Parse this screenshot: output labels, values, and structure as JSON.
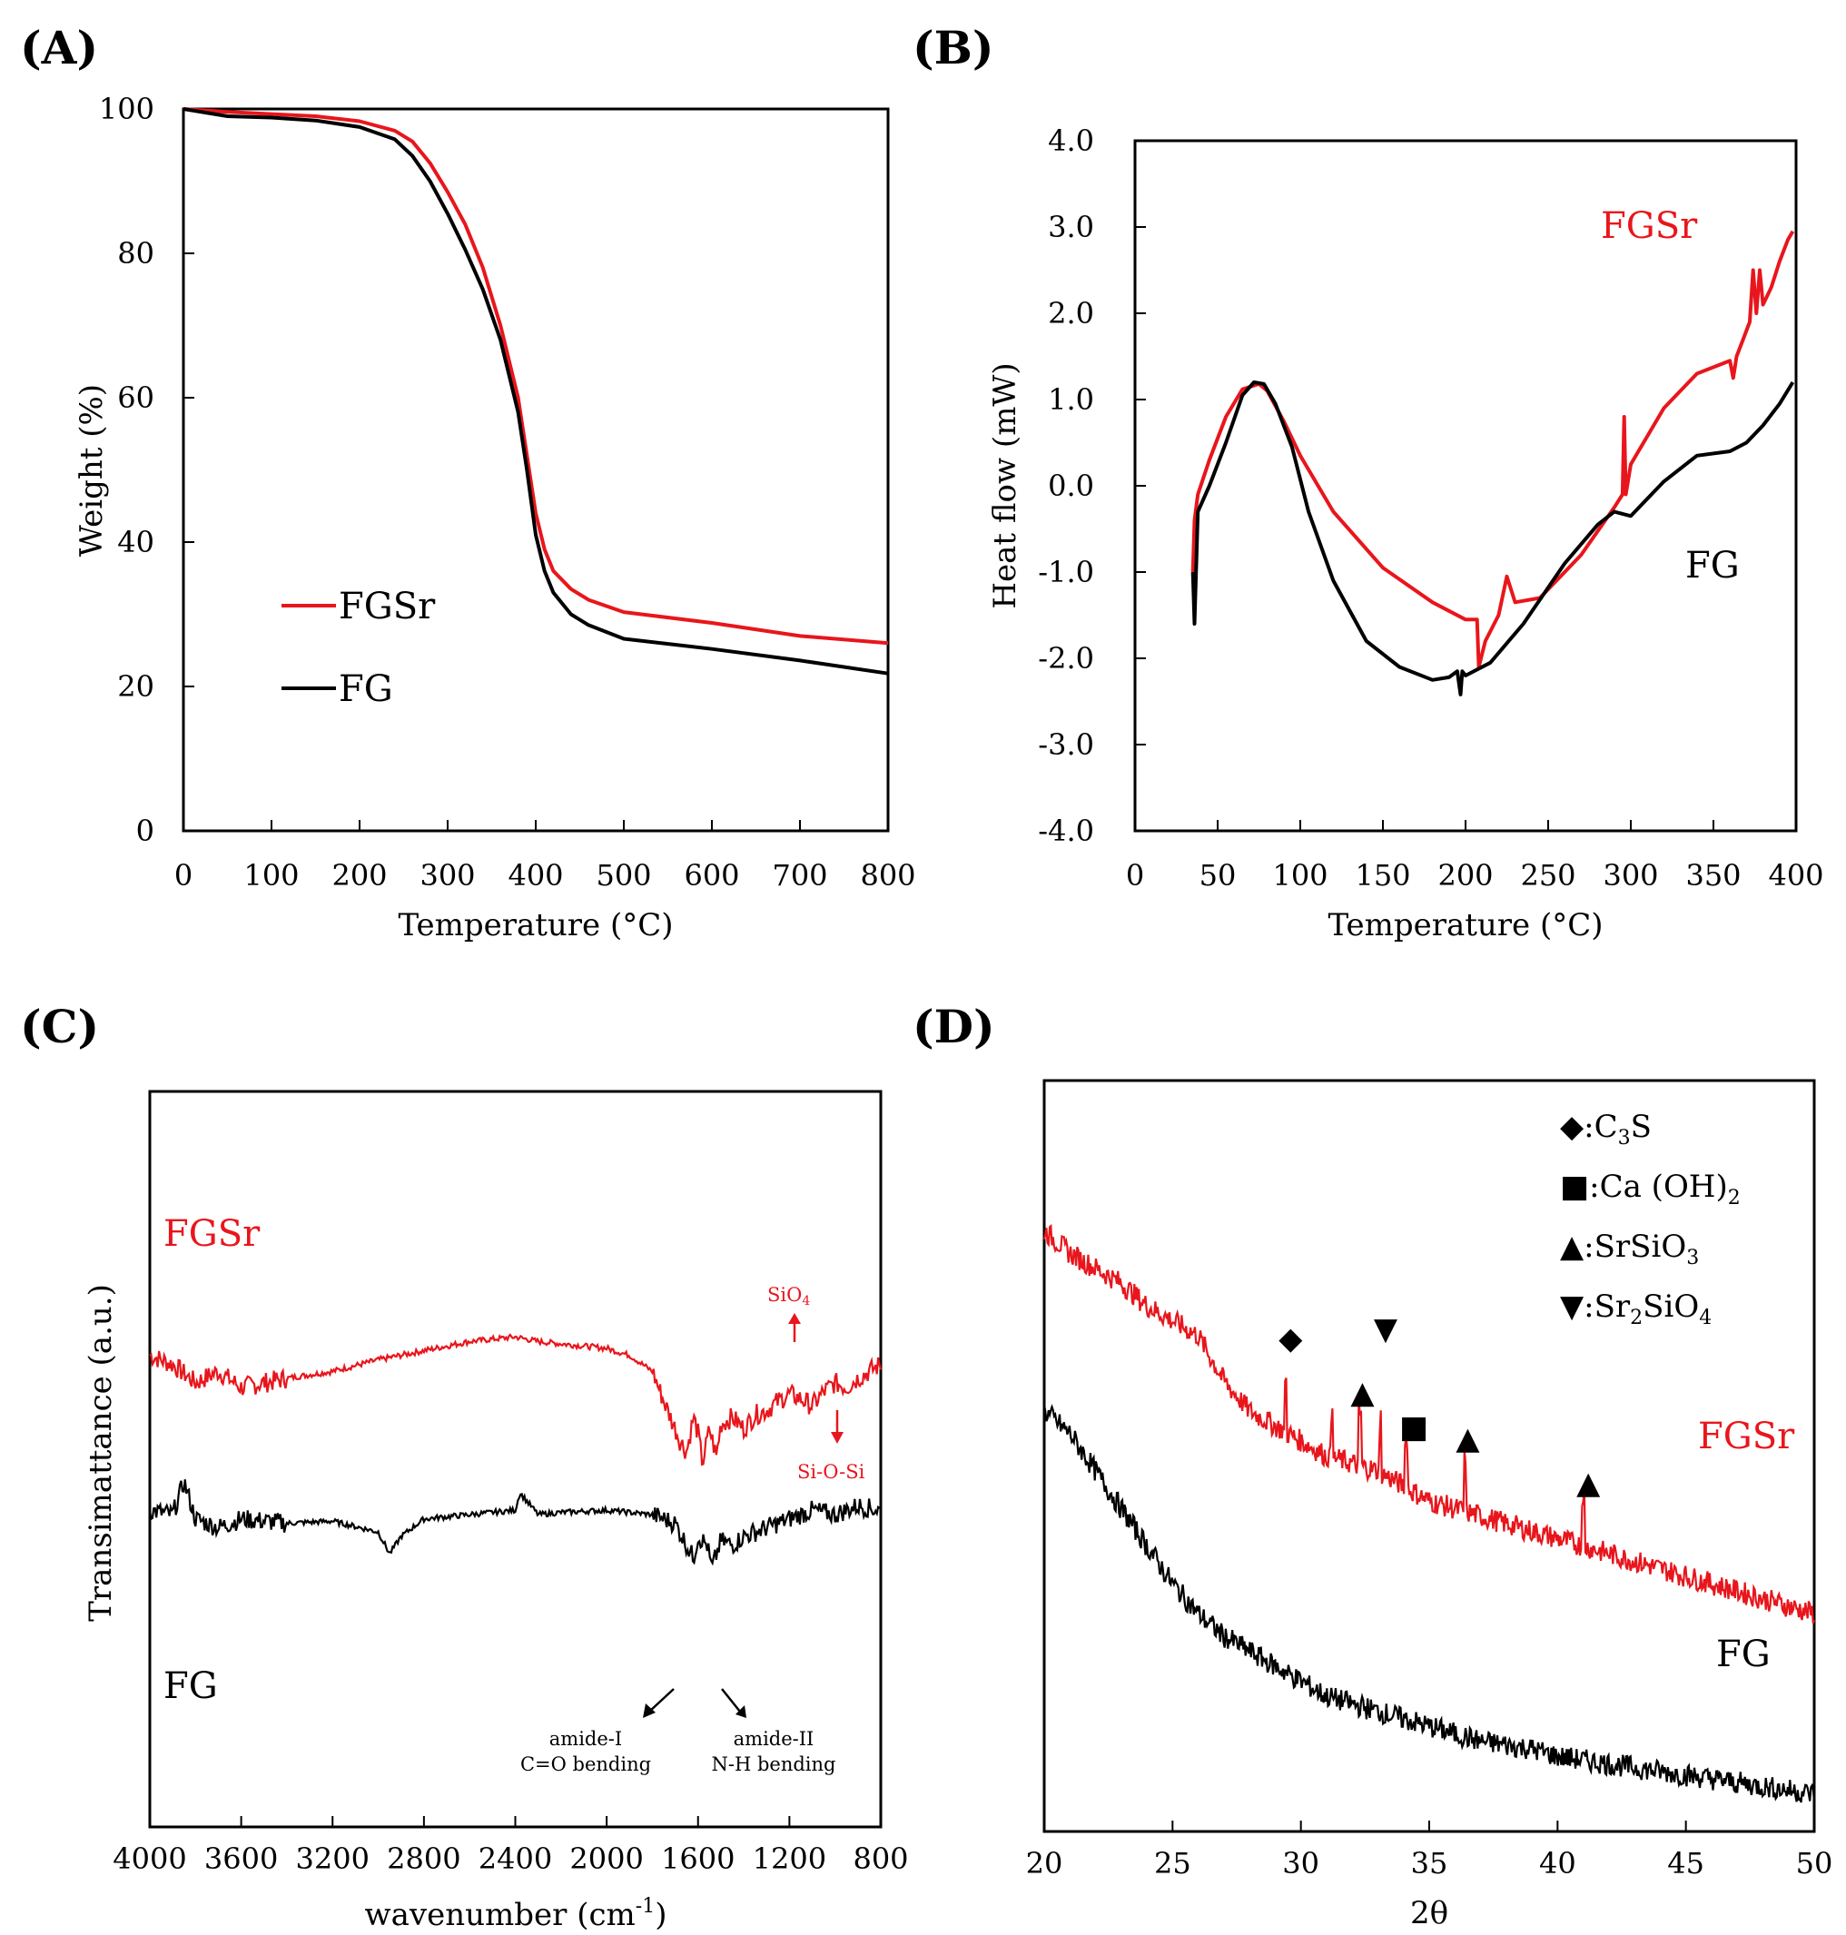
{
  "colors": {
    "fgsr": "#e8161c",
    "fg": "#000000"
  },
  "chart_data": [
    {
      "panel": "(A)",
      "type": "line",
      "title": "",
      "xlabel": "Temperature (°C)",
      "ylabel": "Weight (%)",
      "xlim": [
        0,
        800
      ],
      "ylim": [
        0,
        100
      ],
      "xticks": [
        "0",
        "100",
        "200",
        "300",
        "400",
        "500",
        "600",
        "700",
        "800"
      ],
      "yticks": [
        "0",
        "20",
        "40",
        "60",
        "80",
        "100"
      ],
      "legend": [
        "FGSr",
        "FG"
      ],
      "series": [
        {
          "name": "FGSr",
          "x": [
            0,
            50,
            100,
            150,
            200,
            240,
            260,
            280,
            300,
            320,
            340,
            360,
            380,
            390,
            400,
            410,
            420,
            440,
            460,
            500,
            600,
            700,
            800
          ],
          "y": [
            100,
            99.6,
            99.3,
            99.0,
            98.3,
            97.0,
            95.5,
            92.5,
            88.5,
            84.0,
            78.0,
            70.0,
            60.0,
            52.0,
            44.0,
            39.0,
            36.0,
            33.5,
            32.0,
            30.3,
            28.8,
            27.0,
            26.0
          ]
        },
        {
          "name": "FG",
          "x": [
            0,
            50,
            100,
            150,
            200,
            240,
            260,
            280,
            300,
            320,
            340,
            360,
            380,
            390,
            400,
            410,
            420,
            440,
            460,
            500,
            600,
            700,
            800
          ],
          "y": [
            100,
            99.0,
            98.8,
            98.4,
            97.5,
            95.8,
            93.5,
            90.0,
            85.5,
            80.5,
            75.0,
            68.0,
            58.0,
            50.0,
            41.0,
            36.0,
            33.0,
            30.0,
            28.5,
            26.6,
            25.2,
            23.6,
            21.8
          ]
        }
      ]
    },
    {
      "panel": "(B)",
      "type": "line",
      "title": "",
      "xlabel": "Temperature (°C)",
      "ylabel": "Heat flow (mW)",
      "xlim": [
        0,
        400
      ],
      "ylim": [
        -4.0,
        4.0
      ],
      "xticks": [
        "0",
        "50",
        "100",
        "150",
        "200",
        "250",
        "300",
        "350",
        "400"
      ],
      "yticks": [
        "4.0",
        "3.0",
        "2.0",
        "1.0",
        "0.0",
        "-1.0",
        "-2.0",
        "-3.0",
        "-4.0"
      ],
      "series": [
        {
          "name": "FGSr",
          "x": [
            35,
            36,
            38,
            45,
            55,
            65,
            75,
            80,
            90,
            100,
            120,
            150,
            180,
            200,
            207,
            208,
            212,
            220,
            225,
            230,
            245,
            270,
            290,
            295,
            296,
            297,
            300,
            320,
            340,
            360,
            362,
            364,
            368,
            372,
            374,
            376,
            378,
            380,
            385,
            390,
            395,
            398
          ],
          "y": [
            -1.0,
            -0.4,
            -0.1,
            0.3,
            0.8,
            1.12,
            1.18,
            1.1,
            0.75,
            0.35,
            -0.3,
            -0.95,
            -1.35,
            -1.55,
            -1.55,
            -2.1,
            -1.8,
            -1.5,
            -1.05,
            -1.35,
            -1.3,
            -0.8,
            -0.25,
            -0.1,
            0.8,
            -0.1,
            0.25,
            0.9,
            1.3,
            1.45,
            1.25,
            1.5,
            1.7,
            1.9,
            2.5,
            2.0,
            2.5,
            2.1,
            2.3,
            2.6,
            2.85,
            2.95
          ]
        },
        {
          "name": "FG",
          "x": [
            35,
            36,
            38,
            45,
            55,
            65,
            72,
            78,
            85,
            95,
            105,
            120,
            140,
            160,
            180,
            190,
            195,
            197,
            198,
            200,
            215,
            235,
            260,
            280,
            290,
            300,
            320,
            340,
            360,
            370,
            380,
            390,
            398
          ],
          "y": [
            -1.0,
            -1.6,
            -0.3,
            0.0,
            0.5,
            1.05,
            1.2,
            1.18,
            0.95,
            0.45,
            -0.3,
            -1.1,
            -1.8,
            -2.1,
            -2.25,
            -2.22,
            -2.15,
            -2.42,
            -2.15,
            -2.2,
            -2.05,
            -1.6,
            -0.9,
            -0.45,
            -0.3,
            -0.35,
            0.05,
            0.35,
            0.4,
            0.5,
            0.7,
            0.95,
            1.2
          ]
        }
      ],
      "series_labels": [
        "FGSr",
        "FG"
      ]
    },
    {
      "panel": "(C)",
      "type": "line",
      "title": "",
      "xlabel": "wavenumber (cm",
      "xlabel_sup": "-1",
      "xlabel_end": ")",
      "ylabel": "Transimattance (a.u.)",
      "xlim": [
        4000,
        800
      ],
      "xticks": [
        "4000",
        "3600",
        "3200",
        "2800",
        "2400",
        "2000",
        "1600",
        "1200",
        "800"
      ],
      "series": [
        {
          "name": "FGSr",
          "x": [
            4000,
            3900,
            3800,
            3700,
            3600,
            3400,
            3200,
            3000,
            2800,
            2600,
            2400,
            2300,
            2200,
            2000,
            1900,
            1800,
            1750,
            1700,
            1680,
            1650,
            1620,
            1600,
            1580,
            1550,
            1520,
            1500,
            1450,
            1400,
            1350,
            1300,
            1250,
            1200,
            1150,
            1100,
            1050,
            1000,
            950,
            900,
            850,
            800
          ],
          "y": [
            0.82,
            0.78,
            0.7,
            0.75,
            0.68,
            0.72,
            0.75,
            0.8,
            0.84,
            0.88,
            0.9,
            0.88,
            0.87,
            0.85,
            0.82,
            0.75,
            0.62,
            0.5,
            0.45,
            0.4,
            0.55,
            0.48,
            0.35,
            0.5,
            0.38,
            0.52,
            0.55,
            0.5,
            0.56,
            0.58,
            0.62,
            0.65,
            0.63,
            0.6,
            0.66,
            0.7,
            0.68,
            0.72,
            0.75,
            0.78
          ]
        },
        {
          "name": "FG",
          "x": [
            4000,
            3900,
            3850,
            3800,
            3700,
            3600,
            3400,
            3200,
            3000,
            2950,
            2900,
            2800,
            2600,
            2400,
            2380,
            2300,
            2200,
            2000,
            1900,
            1800,
            1700,
            1650,
            1620,
            1600,
            1560,
            1540,
            1500,
            1450,
            1400,
            1300,
            1200,
            1100,
            1000,
            900,
            800
          ],
          "y": [
            0.82,
            0.8,
            0.95,
            0.78,
            0.74,
            0.78,
            0.76,
            0.77,
            0.72,
            0.62,
            0.7,
            0.78,
            0.8,
            0.82,
            0.9,
            0.8,
            0.81,
            0.82,
            0.81,
            0.8,
            0.76,
            0.66,
            0.6,
            0.7,
            0.66,
            0.55,
            0.68,
            0.66,
            0.7,
            0.74,
            0.78,
            0.82,
            0.8,
            0.84,
            0.82
          ]
        }
      ],
      "series_labels": [
        "FGSr",
        "FG"
      ],
      "annotations": {
        "sio4": "SiO",
        "sio4_sub": "4",
        "siosi": "Si-O-Si",
        "amide1_line1": "amide-I",
        "amide1_line2": "C=O bending",
        "amide2_line1": "amide-II",
        "amide2_line2": "N-H bending"
      }
    },
    {
      "panel": "(D)",
      "type": "line",
      "title": "",
      "xlabel": "2θ",
      "xlim": [
        20,
        50
      ],
      "xticks": [
        "20",
        "25",
        "30",
        "35",
        "40",
        "45",
        "50"
      ],
      "series": [
        {
          "name": "FGSr",
          "x": [
            20,
            21,
            22,
            23,
            24,
            25,
            26,
            27,
            28,
            29,
            30,
            31,
            32,
            33,
            34,
            35,
            36,
            37,
            38,
            39,
            40,
            41,
            42,
            43,
            44,
            45,
            46,
            47,
            48,
            49,
            50
          ],
          "y": [
            0.8,
            0.77,
            0.75,
            0.73,
            0.7,
            0.68,
            0.66,
            0.6,
            0.56,
            0.54,
            0.52,
            0.5,
            0.49,
            0.48,
            0.46,
            0.44,
            0.43,
            0.42,
            0.41,
            0.4,
            0.39,
            0.38,
            0.37,
            0.36,
            0.35,
            0.34,
            0.33,
            0.32,
            0.31,
            0.3,
            0.29
          ]
        },
        {
          "name": "FG",
          "x": [
            20,
            21,
            22,
            23,
            24,
            25,
            26,
            27,
            28,
            29,
            30,
            31,
            32,
            33,
            34,
            35,
            36,
            37,
            38,
            39,
            40,
            41,
            42,
            43,
            44,
            45,
            46,
            47,
            48,
            49,
            50
          ],
          "y": [
            0.56,
            0.53,
            0.48,
            0.43,
            0.38,
            0.33,
            0.29,
            0.26,
            0.24,
            0.22,
            0.2,
            0.18,
            0.17,
            0.16,
            0.15,
            0.14,
            0.13,
            0.12,
            0.115,
            0.11,
            0.1,
            0.095,
            0.09,
            0.085,
            0.08,
            0.075,
            0.07,
            0.065,
            0.06,
            0.055,
            0.05
          ]
        }
      ],
      "series_labels": [
        "FGSr",
        "FG"
      ],
      "legend": [
        {
          "symbol": "◆",
          "prefix": ":C",
          "sub1": "3",
          "mid": "S",
          "sub2": "",
          "end": ""
        },
        {
          "symbol": "■",
          "prefix": ":Ca (OH)",
          "sub1": "2",
          "mid": "",
          "sub2": "",
          "end": ""
        },
        {
          "symbol": "▲",
          "prefix": ":SrSiO",
          "sub1": "3",
          "mid": "",
          "sub2": "",
          "end": ""
        },
        {
          "symbol": "▼",
          "prefix": ":Sr",
          "sub1": "2",
          "mid": "SiO",
          "sub2": "4",
          "end": ""
        }
      ],
      "markers": [
        {
          "symbol": "◆",
          "x": 29.6
        },
        {
          "symbol": "▼",
          "x": 33.3
        },
        {
          "symbol": "▲",
          "x": 32.4
        },
        {
          "symbol": "■",
          "x": 34.4
        },
        {
          "symbol": "▲",
          "x": 36.5
        },
        {
          "symbol": "▲",
          "x": 41.2
        }
      ]
    }
  ]
}
